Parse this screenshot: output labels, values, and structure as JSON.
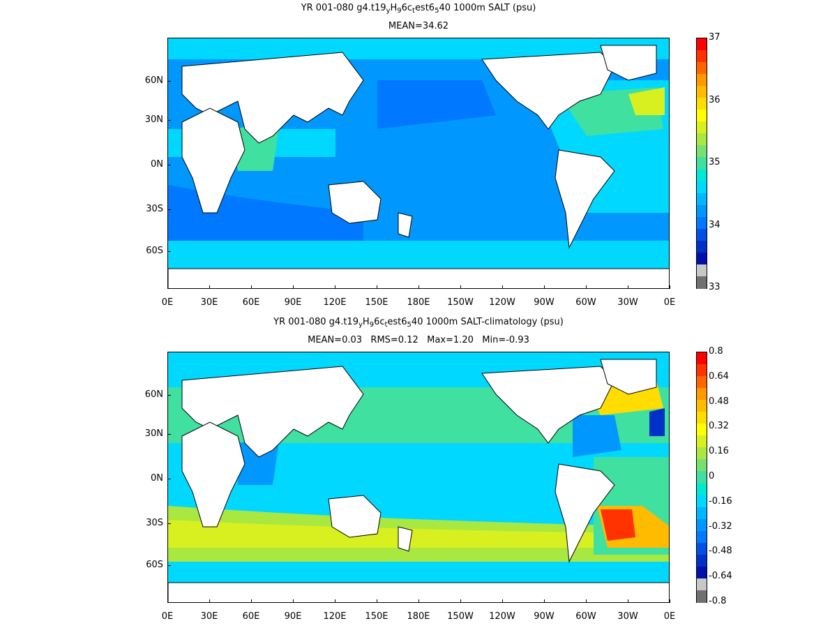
{
  "panels": [
    {
      "title_parts": [
        "YR 001-080 g4.t19",
        "y",
        "H",
        "9",
        "6c",
        "t",
        "est6",
        "5",
        "40 1000m SALT (psu)"
      ],
      "stats": "MEAN=34.62",
      "colorbar": {
        "labels": [
          "37",
          "36",
          "35",
          "34",
          "33"
        ],
        "colors": [
          "#ff0000",
          "#ff3300",
          "#ff6600",
          "#ff9900",
          "#ffbb00",
          "#ffdd00",
          "#ffff00",
          "#d8f020",
          "#a8e840",
          "#78e070",
          "#40e0a0",
          "#00e8d8",
          "#00d8ff",
          "#00b8ff",
          "#0098ff",
          "#0078ff",
          "#0050e8",
          "#0030c8",
          "#0010a8",
          "#c8c8c8",
          "#707070"
        ]
      }
    },
    {
      "title_parts": [
        "YR 001-080 g4.t19",
        "y",
        "H",
        "9",
        "6c",
        "t",
        "est6",
        "5",
        "40 1000m SALT-climatology (psu)"
      ],
      "stats": "MEAN=0.03   RMS=0.12   Max=1.20   Min=-0.93",
      "colorbar": {
        "labels": [
          "0.8",
          "0.64",
          "0.48",
          "0.32",
          "0.16",
          "0",
          "-0.16",
          "-0.32",
          "-0.48",
          "-0.64",
          "-0.8"
        ],
        "colors": [
          "#ff0000",
          "#ff3300",
          "#ff6600",
          "#ff9900",
          "#ffbb00",
          "#ffdd00",
          "#ffff00",
          "#d8f020",
          "#a8e840",
          "#78e070",
          "#40e0a0",
          "#00e8d8",
          "#00d8ff",
          "#00b8ff",
          "#0098ff",
          "#0078ff",
          "#0050e8",
          "#0030c8",
          "#0010a8",
          "#c8c8c8",
          "#707070"
        ]
      }
    }
  ],
  "axes": {
    "y_labels": [
      "60N",
      "30N",
      "0N",
      "30S",
      "60S"
    ],
    "x_labels": [
      "0E",
      "30E",
      "60E",
      "90E",
      "120E",
      "150E",
      "180E",
      "150W",
      "120W",
      "90W",
      "60W",
      "30W",
      "0E"
    ]
  },
  "colors": {
    "land": "#ffffff",
    "coast": "#000000",
    "field_top": {
      "base": "#0098ff",
      "mid": "#00d8ff",
      "low": "#0078ff",
      "high": "#40e0a0",
      "peak": "#d8f020"
    },
    "field_bottom": {
      "base": "#00d8ff",
      "mid": "#40e0a0",
      "low": "#0098ff",
      "high": "#a8e840",
      "peak": "#ff3300"
    }
  }
}
